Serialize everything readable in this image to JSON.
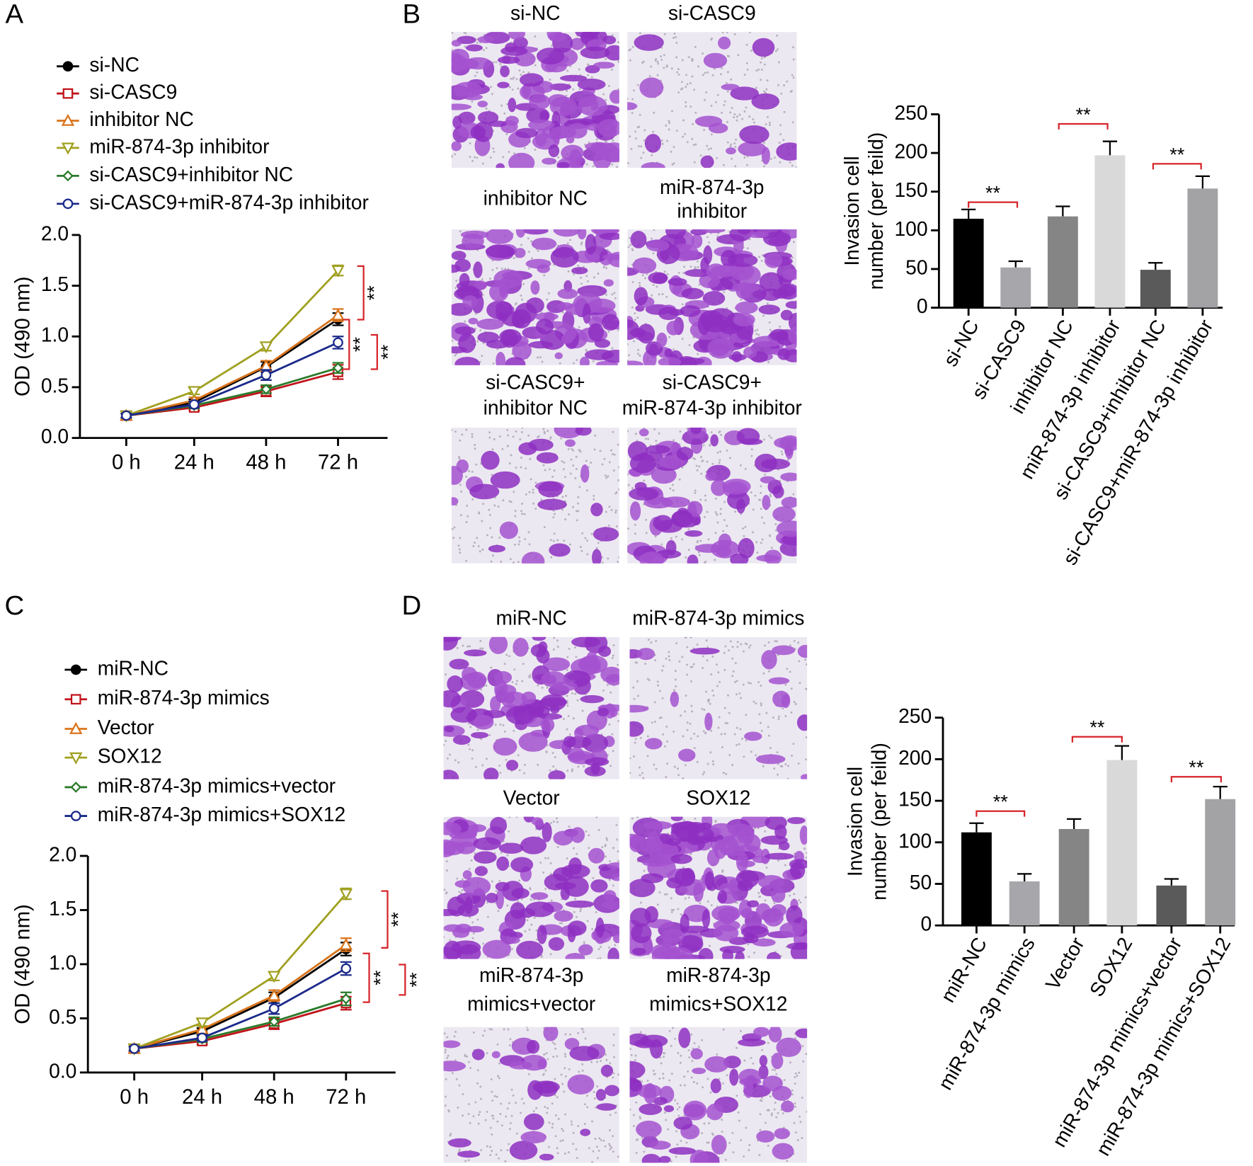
{
  "chart_data": [
    {
      "type": "line",
      "panel": "A",
      "ylabel": "OD (490 nm)",
      "categories": [
        "0 h",
        "24 h",
        "48 h",
        "72 h"
      ],
      "ylim": [
        0,
        2.0
      ],
      "yticks": [
        {
          "value": 0,
          "label": "0.0"
        },
        {
          "value": 0.5,
          "label": "0.5"
        },
        {
          "value": 1.0,
          "label": "1.0"
        },
        {
          "value": 1.5,
          "label": "1.5"
        },
        {
          "value": 2.0,
          "label": "2.0"
        }
      ],
      "series": [
        {
          "name": "si-NC",
          "color": "#000000",
          "marker": "circle-filled",
          "values": [
            0.22,
            0.35,
            0.7,
            1.17
          ],
          "errors": [
            0.02,
            0.03,
            0.05,
            0.06
          ]
        },
        {
          "name": "si-CASC9",
          "color": "#c0141b",
          "marker": "square",
          "values": [
            0.22,
            0.3,
            0.46,
            0.65
          ],
          "errors": [
            0.02,
            0.03,
            0.05,
            0.07
          ]
        },
        {
          "name": "inhibitor NC",
          "color": "#d9741c",
          "marker": "triangle-up",
          "values": [
            0.22,
            0.37,
            0.71,
            1.21
          ],
          "errors": [
            0.02,
            0.03,
            0.05,
            0.06
          ]
        },
        {
          "name": "miR-874-3p inhibitor",
          "color": "#a0a021",
          "marker": "triangle-down",
          "values": [
            0.22,
            0.46,
            0.9,
            1.65
          ],
          "errors": [
            0.02,
            0.03,
            0.04,
            0.05
          ]
        },
        {
          "name": "si-CASC9+inhibitor NC",
          "color": "#2a7a2a",
          "marker": "diamond",
          "values": [
            0.22,
            0.32,
            0.48,
            0.69
          ],
          "errors": [
            0.02,
            0.03,
            0.04,
            0.05
          ]
        },
        {
          "name": "si-CASC9+miR-874-3p inhibitor",
          "color": "#1b2a8a",
          "marker": "circle-open",
          "values": [
            0.22,
            0.33,
            0.62,
            0.94
          ],
          "errors": [
            0.02,
            0.03,
            0.05,
            0.06
          ]
        }
      ],
      "annotations": [
        "**",
        "**",
        "**"
      ]
    },
    {
      "type": "bar",
      "panel": "B",
      "ylabel": [
        "Invasion cell",
        "number (per feild)"
      ],
      "categories": [
        "si-NC",
        "si-CASC9",
        "inhibitor NC",
        "miR-874-3p inhibitor",
        "si-CASC9+inhibitor NC",
        "si-CASC9+miR-874-3p inhibitor"
      ],
      "values": [
        115,
        52,
        118,
        197,
        49,
        154
      ],
      "errors": [
        12,
        8,
        13,
        18,
        9,
        16
      ],
      "colors": [
        "#000000",
        "#a7a7ab",
        "#858585",
        "#d9d9d9",
        "#5a5a5a",
        "#a3a3a6"
      ],
      "ylim": [
        0,
        250
      ],
      "yticks": [
        0,
        50,
        100,
        150,
        200,
        250
      ],
      "annotations": [
        "**",
        "**",
        "**"
      ]
    },
    {
      "type": "line",
      "panel": "C",
      "ylabel": "OD (490 nm)",
      "categories": [
        "0 h",
        "24 h",
        "48 h",
        "72 h"
      ],
      "ylim": [
        0,
        2.0
      ],
      "yticks": [
        {
          "value": 0,
          "label": "0.0"
        },
        {
          "value": 0.5,
          "label": "0.5"
        },
        {
          "value": 1.0,
          "label": "1.0"
        },
        {
          "value": 1.5,
          "label": "1.5"
        },
        {
          "value": 2.0,
          "label": "2.0"
        }
      ],
      "series": [
        {
          "name": "miR-NC",
          "color": "#000000",
          "marker": "circle-filled",
          "values": [
            0.22,
            0.38,
            0.69,
            1.14
          ],
          "errors": [
            0.02,
            0.03,
            0.05,
            0.06
          ]
        },
        {
          "name": "miR-874-3p mimics",
          "color": "#c0141b",
          "marker": "square",
          "values": [
            0.22,
            0.29,
            0.45,
            0.64
          ],
          "errors": [
            0.02,
            0.03,
            0.05,
            0.06
          ]
        },
        {
          "name": "Vector",
          "color": "#d9741c",
          "marker": "triangle-up",
          "values": [
            0.22,
            0.4,
            0.71,
            1.18
          ],
          "errors": [
            0.02,
            0.03,
            0.05,
            0.06
          ]
        },
        {
          "name": "SOX12",
          "color": "#a0a021",
          "marker": "triangle-down",
          "values": [
            0.22,
            0.46,
            0.89,
            1.65
          ],
          "errors": [
            0.02,
            0.03,
            0.04,
            0.05
          ]
        },
        {
          "name": "miR-874-3p mimics+vector",
          "color": "#2a7a2a",
          "marker": "diamond",
          "values": [
            0.22,
            0.31,
            0.47,
            0.68
          ],
          "errors": [
            0.02,
            0.03,
            0.04,
            0.06
          ]
        },
        {
          "name": "miR-874-3p mimics+SOX12",
          "color": "#1b2a8a",
          "marker": "circle-open",
          "values": [
            0.22,
            0.32,
            0.59,
            0.96
          ],
          "errors": [
            0.02,
            0.03,
            0.05,
            0.06
          ]
        }
      ],
      "annotations": [
        "**",
        "**",
        "**"
      ]
    },
    {
      "type": "bar",
      "panel": "D",
      "ylabel": [
        "Invasion cell",
        "number (per feild)"
      ],
      "categories": [
        "miR-NC",
        "miR-874-3p mimics",
        "Vector",
        "SOX12",
        "miR-874-3p mimics+vector",
        "miR-874-3p mimics+SOX12"
      ],
      "values": [
        112,
        53,
        116,
        199,
        48,
        152
      ],
      "errors": [
        11,
        9,
        12,
        17,
        8,
        15
      ],
      "colors": [
        "#000000",
        "#a7a7ab",
        "#858585",
        "#d9d9d9",
        "#5a5a5a",
        "#a3a3a6"
      ],
      "ylim": [
        0,
        250
      ],
      "yticks": [
        0,
        50,
        100,
        150,
        200,
        250
      ],
      "annotations": [
        "**",
        "**",
        "**"
      ]
    }
  ],
  "micrographs": [
    {
      "labels": [
        [
          "si-NC"
        ],
        [
          "si-CASC9"
        ],
        [
          "inhibitor NC"
        ],
        [
          "miR-874-3p",
          "inhibitor"
        ],
        [
          "si-CASC9+",
          "inhibitor NC"
        ],
        [
          "si-CASC9+",
          "miR-874-3p inhibitor"
        ]
      ]
    },
    {
      "labels": [
        [
          "miR-NC"
        ],
        [
          "miR-874-3p mimics"
        ],
        [
          "Vector"
        ],
        [
          "SOX12"
        ],
        [
          "miR-874-3p",
          "mimics+vector"
        ],
        [
          "miR-874-3p",
          "mimics+SOX12"
        ]
      ]
    }
  ]
}
